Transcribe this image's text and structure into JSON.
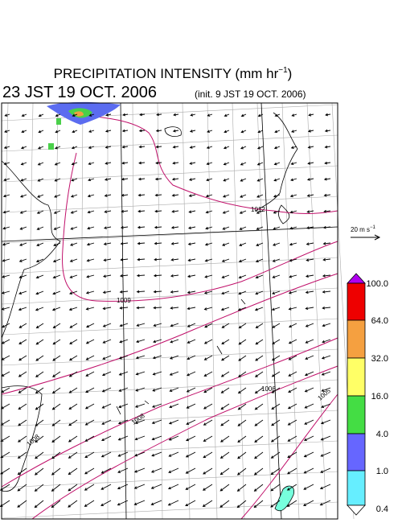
{
  "title": {
    "text": "PRECIPITATION INTENSITY (mm hr",
    "superscript": "−1",
    "close": ")"
  },
  "valid_time": "23 JST 19 OCT. 2006",
  "init_time": "(init. 9 JST 19 OCT. 2006)",
  "wind_scale": {
    "text": "20 m s",
    "superscript": "−1"
  },
  "colorbar": {
    "labels": [
      "100.0",
      "64.0",
      "32.0",
      "16.0",
      "4.0",
      "1.0",
      "0.4"
    ]
  },
  "isobar_labels": [
    "1012",
    "1009",
    "1006",
    "1005",
    "1008",
    "1008"
  ]
}
